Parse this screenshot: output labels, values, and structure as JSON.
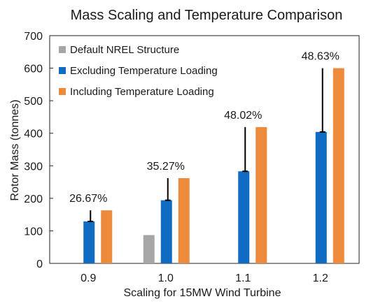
{
  "chart_data": {
    "type": "bar",
    "title": "Mass Scaling and Temperature Comparison",
    "xlabel": "Scaling for 15MW Wind Turbine",
    "ylabel": "Rotor Mass (tonnes)",
    "ylim": [
      0,
      700
    ],
    "yticks": [
      0,
      100,
      200,
      300,
      400,
      500,
      600,
      700
    ],
    "categories": [
      "0.9",
      "1.0",
      "1.1",
      "1.2"
    ],
    "legend_position": "top-left",
    "grid": false,
    "series": [
      {
        "name": "Default NREL Structure",
        "color": "#a6a6a6",
        "values": [
          null,
          87,
          null,
          null
        ]
      },
      {
        "name": "Excluding Temperature Loading",
        "color": "#0f6cc2",
        "values": [
          129,
          194,
          283,
          404
        ]
      },
      {
        "name": "Including Temperature Loading",
        "color": "#ee8a3c",
        "values": [
          163,
          262,
          419,
          600
        ]
      }
    ],
    "annotations": [
      "26.67%",
      "35.27%",
      "48.02%",
      "48.63%"
    ]
  }
}
